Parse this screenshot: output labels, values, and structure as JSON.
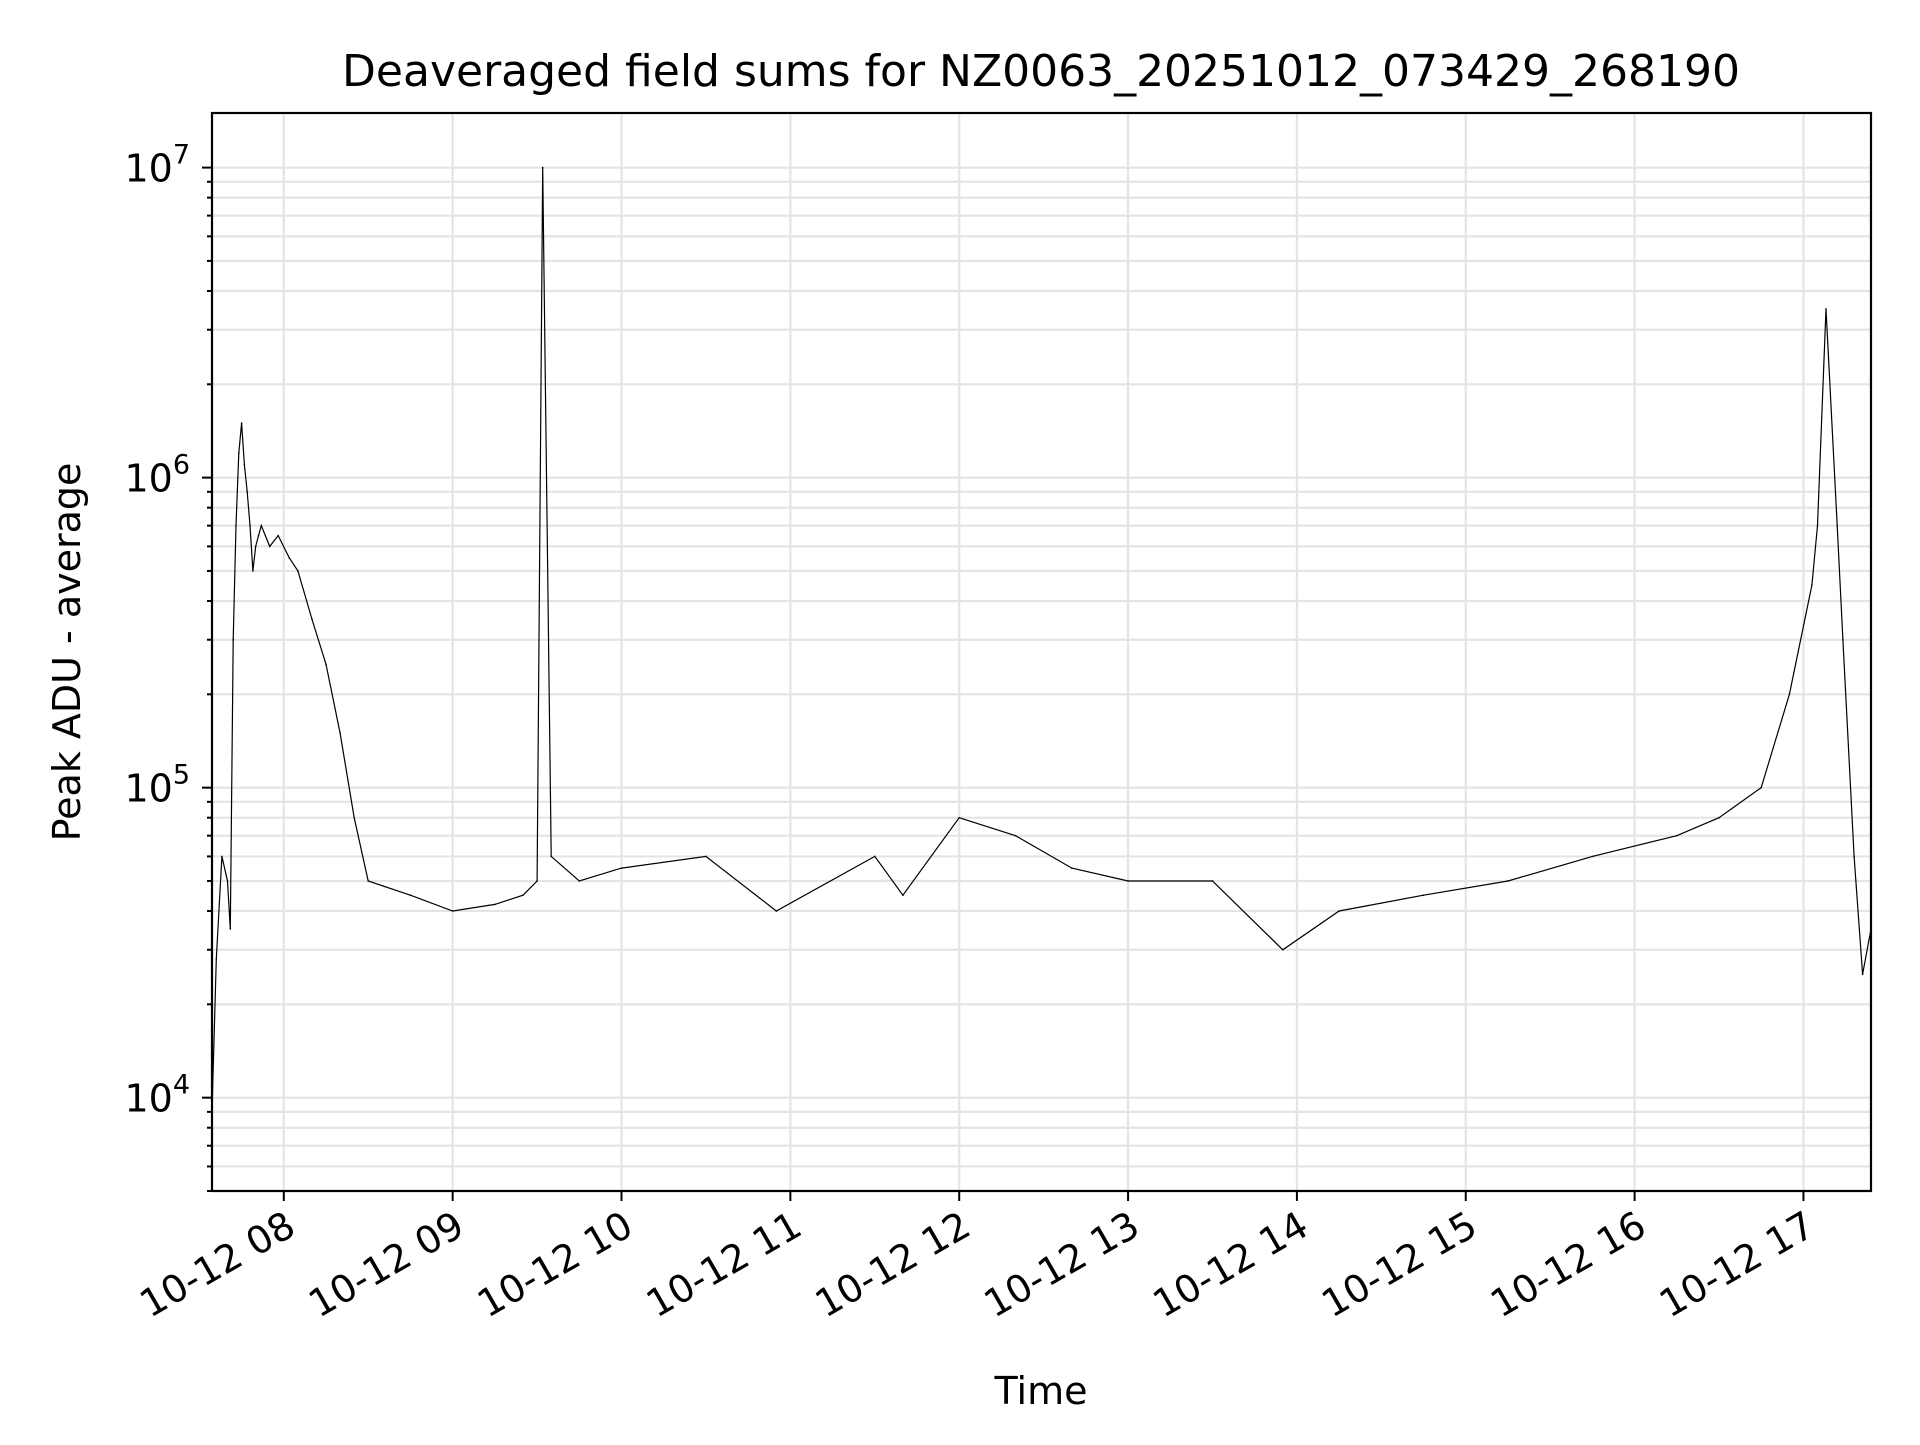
{
  "chart_data": {
    "type": "line",
    "title": "Deaveraged field sums for NZ0063_20251012_073429_268190",
    "xlabel": "Time",
    "ylabel": "Peak ADU - average",
    "yscale": "log",
    "ylim": [
      5000,
      15000000
    ],
    "xlim": [
      "2025-10-12 07:34:29",
      "2025-10-12 17:24:00"
    ],
    "grid": true,
    "x_ticks": [
      "10-12 08",
      "10-12 09",
      "10-12 10",
      "10-12 11",
      "10-12 12",
      "10-12 13",
      "10-12 14",
      "10-12 15",
      "10-12 16",
      "10-12 17"
    ],
    "y_ticks": [
      {
        "base": "10",
        "exp": "4"
      },
      {
        "base": "10",
        "exp": "5"
      },
      {
        "base": "10",
        "exp": "6"
      },
      {
        "base": "10",
        "exp": "7"
      }
    ],
    "series": [
      {
        "color": "#000000",
        "x": [
          "2025-10-12 07:34:29",
          "2025-10-12 07:36:00",
          "2025-10-12 07:38:00",
          "2025-10-12 07:40:00",
          "2025-10-12 07:41:00",
          "2025-10-12 07:42:00",
          "2025-10-12 07:43:00",
          "2025-10-12 07:44:00",
          "2025-10-12 07:45:00",
          "2025-10-12 07:46:00",
          "2025-10-12 07:47:00",
          "2025-10-12 07:48:00",
          "2025-10-12 07:49:00",
          "2025-10-12 07:50:00",
          "2025-10-12 07:51:00",
          "2025-10-12 07:52:00",
          "2025-10-12 07:55:00",
          "2025-10-12 07:58:00",
          "2025-10-12 08:02:00",
          "2025-10-12 08:05:00",
          "2025-10-12 08:10:00",
          "2025-10-12 08:15:00",
          "2025-10-12 08:20:00",
          "2025-10-12 08:25:00",
          "2025-10-12 08:30:00",
          "2025-10-12 08:45:00",
          "2025-10-12 09:00:00",
          "2025-10-12 09:15:00",
          "2025-10-12 09:25:00",
          "2025-10-12 09:30:00",
          "2025-10-12 09:32:00",
          "2025-10-12 09:35:00",
          "2025-10-12 09:45:00",
          "2025-10-12 10:00:00",
          "2025-10-12 10:30:00",
          "2025-10-12 10:55:00",
          "2025-10-12 11:30:00",
          "2025-10-12 11:40:00",
          "2025-10-12 12:00:00",
          "2025-10-12 12:20:00",
          "2025-10-12 12:40:00",
          "2025-10-12 13:00:00",
          "2025-10-12 13:30:00",
          "2025-10-12 13:55:00",
          "2025-10-12 14:15:00",
          "2025-10-12 14:45:00",
          "2025-10-12 15:15:00",
          "2025-10-12 15:45:00",
          "2025-10-12 16:15:00",
          "2025-10-12 16:30:00",
          "2025-10-12 16:45:00",
          "2025-10-12 16:55:00",
          "2025-10-12 17:03:00",
          "2025-10-12 17:05:00",
          "2025-10-12 17:08:00",
          "2025-10-12 17:12:00",
          "2025-10-12 17:14:00",
          "2025-10-12 17:18:00",
          "2025-10-12 17:21:00",
          "2025-10-12 17:24:00"
        ],
        "y": [
          9000,
          28000,
          60000,
          50000,
          35000,
          300000,
          700000,
          1200000,
          1500000,
          1100000,
          900000,
          700000,
          500000,
          600000,
          650000,
          700000,
          600000,
          650000,
          550000,
          500000,
          350000,
          250000,
          150000,
          80000,
          50000,
          45000,
          40000,
          42000,
          45000,
          50000,
          10000000,
          60000,
          50000,
          55000,
          60000,
          40000,
          60000,
          45000,
          80000,
          70000,
          55000,
          50000,
          50000,
          30000,
          40000,
          45000,
          50000,
          60000,
          70000,
          80000,
          100000,
          200000,
          450000,
          700000,
          3500000,
          700000,
          300000,
          60000,
          25000,
          35000
        ]
      }
    ]
  }
}
